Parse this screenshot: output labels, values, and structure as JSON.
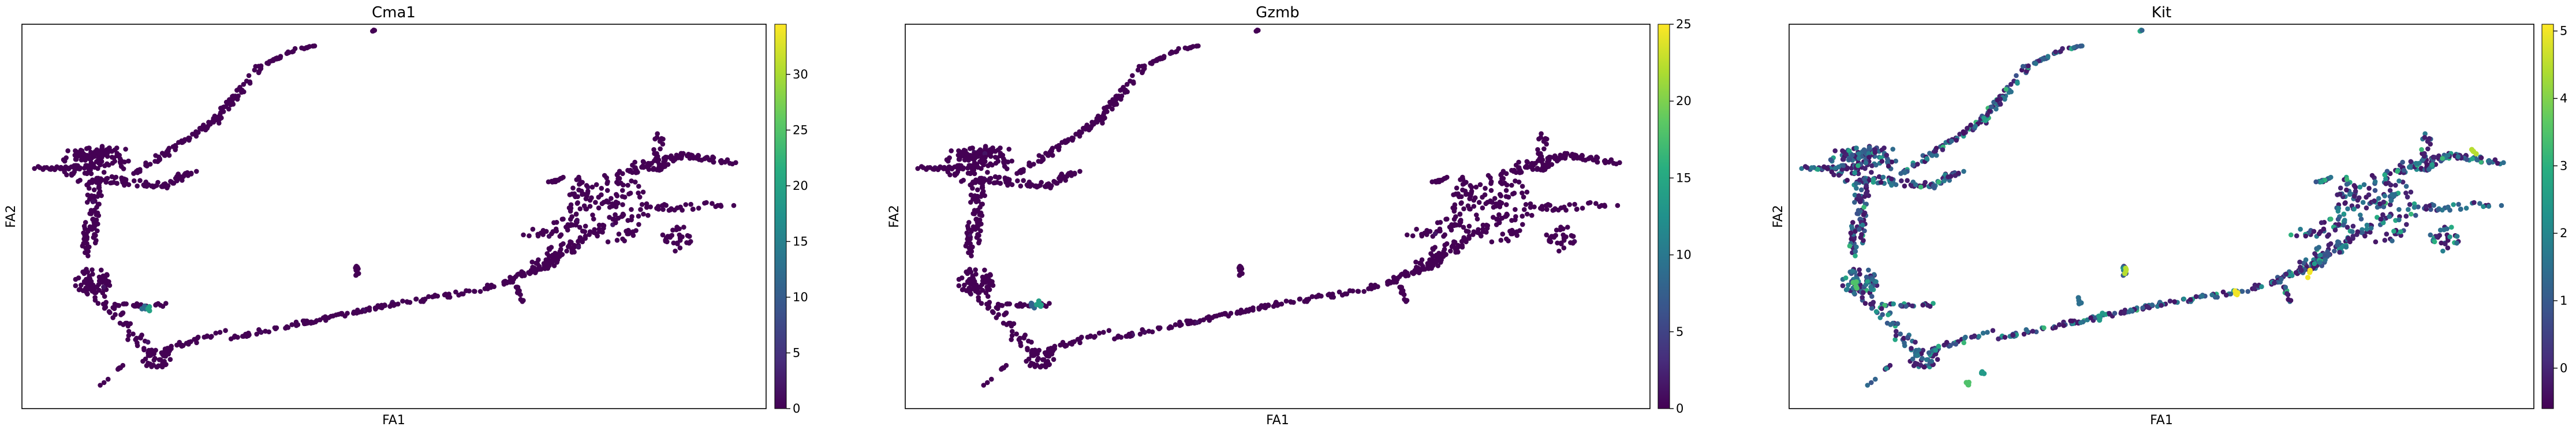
{
  "chart_data": [
    {
      "type": "scatter",
      "title": "Cma1",
      "xlabel": "FA1",
      "ylabel": "FA2",
      "grid": false,
      "colormap": "viridis",
      "colorbar": {
        "range": [
          0,
          34.5
        ],
        "ticks": [
          "0",
          "5",
          "10",
          "15",
          "20",
          "25",
          "30"
        ]
      },
      "hotspot_values": [
        12,
        20
      ]
    },
    {
      "type": "scatter",
      "title": "Gzmb",
      "xlabel": "FA1",
      "ylabel": "FA2",
      "grid": false,
      "colormap": "viridis",
      "colorbar": {
        "range": [
          0,
          25
        ],
        "ticks": [
          "0",
          "5",
          "10",
          "15",
          "20",
          "25"
        ]
      },
      "hotspot_values": [
        8,
        14
      ]
    },
    {
      "type": "scatter",
      "title": "Kit",
      "xlabel": "FA1",
      "ylabel": "FA2",
      "grid": false,
      "colormap": "viridis",
      "colorbar": {
        "range": [
          -0.6,
          5.1
        ],
        "ticks": [
          "0",
          "1",
          "2",
          "3",
          "4",
          "5"
        ]
      },
      "hotspot_values": [
        1.5,
        2.5,
        3.5,
        4.5,
        5
      ]
    }
  ]
}
